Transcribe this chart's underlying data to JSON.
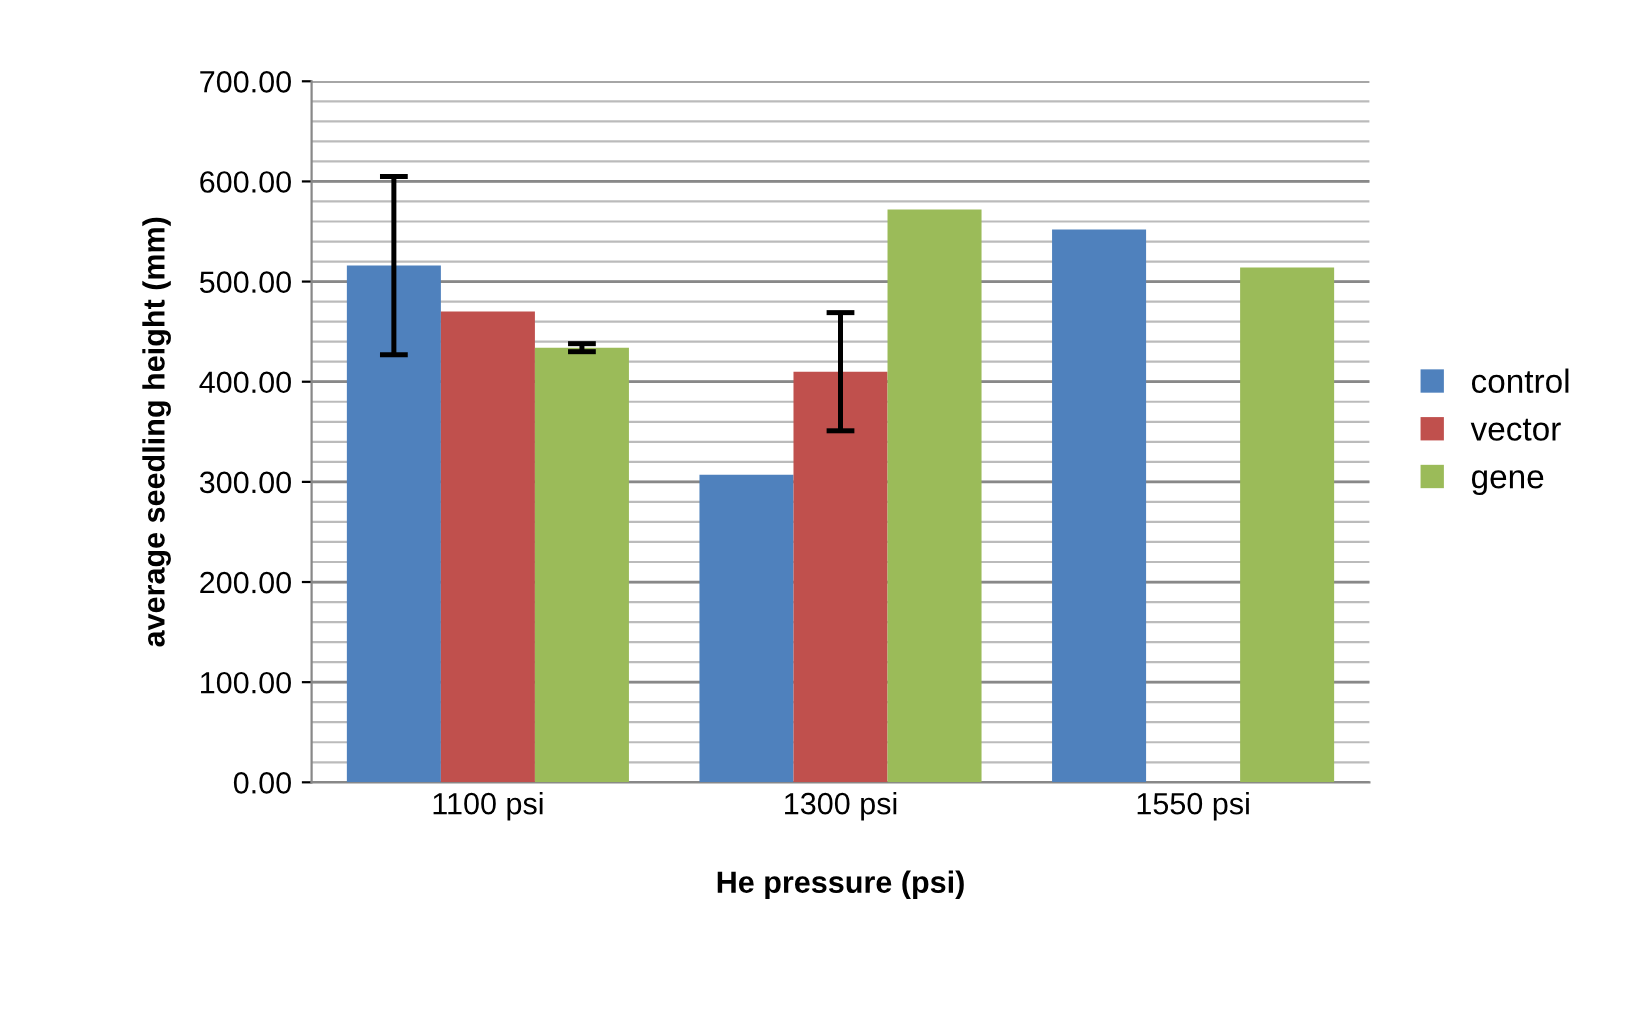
{
  "chart_data": {
    "type": "bar",
    "xlabel": "He pressure (psi)",
    "ylabel": "average seedling height (mm)",
    "categories": [
      "1100 psi",
      "1300 psi",
      "1550 psi"
    ],
    "series": [
      {
        "name": "control",
        "color": "#4f81bd",
        "values": [
          516,
          307,
          552
        ],
        "errors": [
          89,
          null,
          null
        ]
      },
      {
        "name": "vector",
        "color": "#c0504d",
        "values": [
          470,
          410,
          null
        ],
        "errors": [
          null,
          59,
          null
        ]
      },
      {
        "name": "gene",
        "color": "#9bbb59",
        "values": [
          434,
          572,
          514
        ],
        "errors": [
          4,
          null,
          null
        ]
      }
    ],
    "ylim": [
      0,
      700
    ],
    "yticks": [
      {
        "value": 0,
        "label": "0.00"
      },
      {
        "value": 100,
        "label": "100.00"
      },
      {
        "value": 200,
        "label": "200.00"
      },
      {
        "value": 300,
        "label": "300.00"
      },
      {
        "value": 400,
        "label": "400.00"
      },
      {
        "value": 500,
        "label": "500.00"
      },
      {
        "value": 600,
        "label": "600.00"
      },
      {
        "value": 700,
        "label": "700.00"
      }
    ],
    "grid": "y",
    "legend": "right"
  }
}
